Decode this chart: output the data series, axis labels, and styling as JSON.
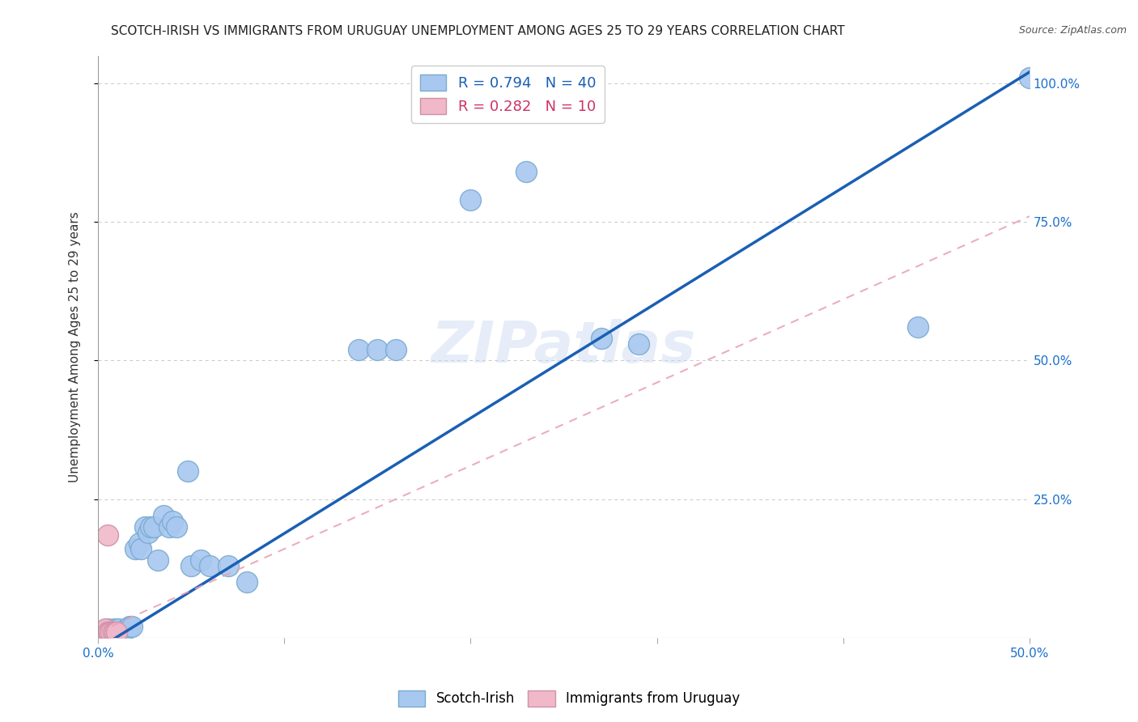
{
  "title": "SCOTCH-IRISH VS IMMIGRANTS FROM URUGUAY UNEMPLOYMENT AMONG AGES 25 TO 29 YEARS CORRELATION CHART",
  "source": "Source: ZipAtlas.com",
  "ylabel": "Unemployment Among Ages 25 to 29 years",
  "xmin": 0.0,
  "xmax": 0.5,
  "ymin": 0.0,
  "ymax": 1.05,
  "xtick_labels_visible": [
    "0.0%",
    "50.0%"
  ],
  "xtick_vals_visible": [
    0.0,
    0.5
  ],
  "xtick_vals_all": [
    0.0,
    0.1,
    0.2,
    0.3,
    0.4,
    0.5
  ],
  "ytick_labels": [
    "25.0%",
    "50.0%",
    "75.0%",
    "100.0%"
  ],
  "ytick_vals": [
    0.25,
    0.5,
    0.75,
    1.0
  ],
  "watermark": "ZIPatlas",
  "legend_entry1_label": "R = 0.794   N = 40",
  "legend_entry2_label": "R = 0.282   N = 10",
  "scatter_blue": [
    [
      0.002,
      0.01
    ],
    [
      0.004,
      0.01
    ],
    [
      0.005,
      0.015
    ],
    [
      0.006,
      0.01
    ],
    [
      0.007,
      0.01
    ],
    [
      0.008,
      0.01
    ],
    [
      0.009,
      0.015
    ],
    [
      0.01,
      0.01
    ],
    [
      0.011,
      0.015
    ],
    [
      0.013,
      0.01
    ],
    [
      0.015,
      0.015
    ],
    [
      0.017,
      0.02
    ],
    [
      0.018,
      0.02
    ],
    [
      0.02,
      0.16
    ],
    [
      0.022,
      0.17
    ],
    [
      0.023,
      0.16
    ],
    [
      0.025,
      0.2
    ],
    [
      0.027,
      0.19
    ],
    [
      0.028,
      0.2
    ],
    [
      0.03,
      0.2
    ],
    [
      0.032,
      0.14
    ],
    [
      0.035,
      0.22
    ],
    [
      0.038,
      0.2
    ],
    [
      0.04,
      0.21
    ],
    [
      0.042,
      0.2
    ],
    [
      0.048,
      0.3
    ],
    [
      0.05,
      0.13
    ],
    [
      0.055,
      0.14
    ],
    [
      0.06,
      0.13
    ],
    [
      0.07,
      0.13
    ],
    [
      0.08,
      0.1
    ],
    [
      0.14,
      0.52
    ],
    [
      0.15,
      0.52
    ],
    [
      0.16,
      0.52
    ],
    [
      0.2,
      0.79
    ],
    [
      0.23,
      0.84
    ],
    [
      0.27,
      0.54
    ],
    [
      0.29,
      0.53
    ],
    [
      0.44,
      0.56
    ],
    [
      0.5,
      1.01
    ]
  ],
  "scatter_pink": [
    [
      0.002,
      0.01
    ],
    [
      0.003,
      0.01
    ],
    [
      0.004,
      0.015
    ],
    [
      0.005,
      0.01
    ],
    [
      0.006,
      0.01
    ],
    [
      0.007,
      0.01
    ],
    [
      0.008,
      0.01
    ],
    [
      0.009,
      0.01
    ],
    [
      0.01,
      0.01
    ],
    [
      0.005,
      0.185
    ]
  ],
  "blue_line_x": [
    0.0,
    0.5
  ],
  "blue_line_y": [
    -0.02,
    1.02
  ],
  "pink_line_x": [
    0.0,
    0.5
  ],
  "pink_line_y": [
    0.01,
    0.76
  ],
  "line_blue_color": "#1a5fb4",
  "line_pink_color": "#e8a0b4",
  "grid_color": "#c8c8c8",
  "background_color": "#ffffff",
  "scatter_blue_color": "#a8c8f0",
  "scatter_blue_edge": "#7aaad0",
  "scatter_pink_color": "#f0b8c8",
  "scatter_pink_edge": "#d090a8",
  "title_fontsize": 11,
  "source_fontsize": 9,
  "watermark_color": "#c8d8f0",
  "watermark_alpha": 0.45,
  "watermark_fontsize": 52
}
